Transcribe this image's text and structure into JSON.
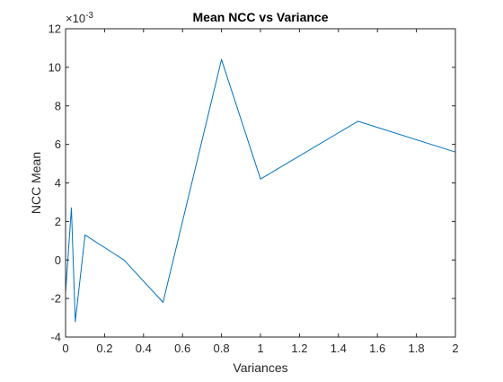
{
  "chart_data": {
    "type": "line",
    "title": "Mean NCC vs Variance",
    "xlabel": "Variances",
    "ylabel": "NCC Mean",
    "exponent_prefix": "×10",
    "exponent_power": "-3",
    "xlim": [
      0,
      2
    ],
    "ylim": [
      -4,
      12
    ],
    "xticks": [
      0,
      0.2,
      0.4,
      0.6,
      0.8,
      1,
      1.2,
      1.4,
      1.6,
      1.8,
      2
    ],
    "xtick_labels": [
      "0",
      "0.2",
      "0.4",
      "0.6",
      "0.8",
      "1",
      "1.2",
      "1.4",
      "1.6",
      "1.8",
      "2"
    ],
    "yticks": [
      -4,
      -2,
      0,
      2,
      4,
      6,
      8,
      10,
      12
    ],
    "ytick_labels": [
      "-4",
      "-2",
      "0",
      "2",
      "4",
      "6",
      "8",
      "10",
      "12"
    ],
    "grid": false,
    "line_color": "#0072BD",
    "series": [
      {
        "x": [
          0,
          0.03,
          0.05,
          0.1,
          0.3,
          0.5,
          0.8,
          1.0,
          1.5,
          2.0
        ],
        "y": [
          -1.7,
          2.7,
          -3.2,
          1.3,
          0.0,
          -2.2,
          10.4,
          4.2,
          7.2,
          5.6
        ]
      }
    ]
  }
}
